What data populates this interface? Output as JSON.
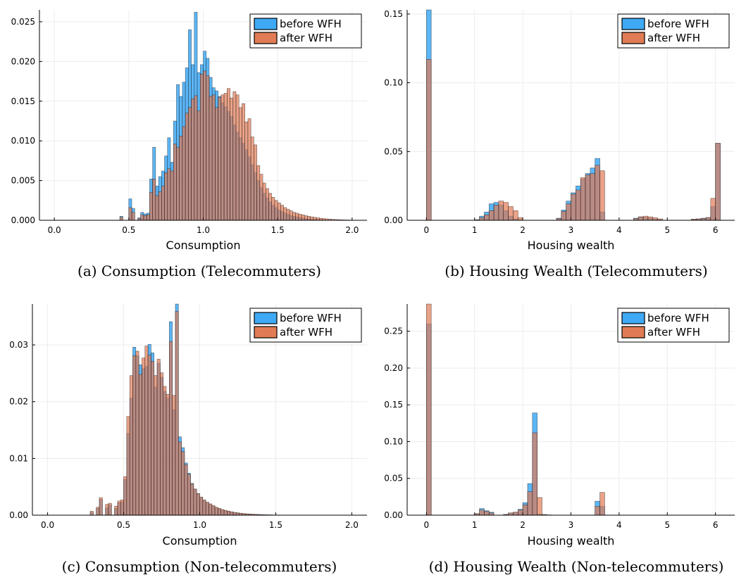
{
  "colors": {
    "before": "#3fa9f5",
    "after": "#e07b55",
    "grid": "#ececec",
    "axis": "#000000"
  },
  "chart_data": [
    {
      "id": "a",
      "type": "bar",
      "caption": "(a) Consumption (Telecommuters)",
      "xlabel": "Consumption",
      "ylabel": "",
      "xlim": [
        -0.1,
        2.1
      ],
      "ylim": [
        0,
        0.0265
      ],
      "xticks": [
        0,
        0.5,
        1,
        1.5,
        2
      ],
      "xtick_labels": [
        "0.0",
        "0.5",
        "1.0",
        "1.5",
        "2.0"
      ],
      "yticks": [
        0,
        0.005,
        0.01,
        0.015,
        0.02,
        0.025
      ],
      "ytick_labels": [
        "0.000",
        "0.005",
        "0.010",
        "0.015",
        "0.020",
        "0.025"
      ],
      "grid": true,
      "legend_position": "top-right",
      "bin_width": 0.02,
      "series": [
        {
          "name": "before WFH",
          "x": [
            0.44,
            0.5,
            0.52,
            0.56,
            0.58,
            0.6,
            0.62,
            0.64,
            0.66,
            0.68,
            0.7,
            0.72,
            0.74,
            0.76,
            0.78,
            0.8,
            0.82,
            0.84,
            0.86,
            0.88,
            0.9,
            0.92,
            0.94,
            0.96,
            0.98,
            1.0,
            1.02,
            1.04,
            1.06,
            1.08,
            1.1,
            1.12,
            1.14,
            1.16,
            1.18,
            1.2,
            1.22,
            1.24,
            1.26,
            1.28,
            1.3,
            1.32,
            1.34,
            1.36,
            1.38,
            1.4,
            1.42,
            1.44,
            1.46,
            1.48,
            1.5,
            1.52,
            1.54,
            1.56,
            1.58,
            1.6,
            1.62,
            1.64,
            1.66,
            1.68,
            1.7,
            1.72,
            1.74,
            1.76,
            1.78,
            1.8,
            1.82,
            1.84,
            1.86,
            1.88,
            1.9,
            1.92,
            1.94,
            1.96,
            1.98
          ],
          "values": [
            0.0005,
            0.0027,
            0.0015,
            0.0003,
            0.001,
            0.0008,
            0.0009,
            0.0052,
            0.0092,
            0.0043,
            0.0055,
            0.0062,
            0.0081,
            0.0104,
            0.0073,
            0.0125,
            0.0171,
            0.0156,
            0.0174,
            0.0192,
            0.024,
            0.0196,
            0.0262,
            0.0186,
            0.0196,
            0.0213,
            0.0204,
            0.018,
            0.0167,
            0.0163,
            0.0156,
            0.0148,
            0.0143,
            0.0137,
            0.0131,
            0.012,
            0.0111,
            0.0104,
            0.0097,
            0.0089,
            0.008,
            0.007,
            0.006,
            0.005,
            0.0041,
            0.0034,
            0.0028,
            0.0023,
            0.0019,
            0.0016,
            0.0013,
            0.0011,
            0.0009,
            0.00075,
            0.0006,
            0.0005,
            0.00042,
            0.00034,
            0.00028,
            0.00022,
            0.00018,
            0.00014,
            0.00011,
            9e-05,
            7e-05,
            5e-05,
            4e-05,
            3e-05,
            2e-05,
            2e-05,
            1e-05,
            1e-05,
            1e-05,
            1e-05,
            1e-05
          ]
        },
        {
          "name": "after WFH",
          "x": [
            0.44,
            0.5,
            0.52,
            0.56,
            0.58,
            0.6,
            0.62,
            0.64,
            0.66,
            0.68,
            0.7,
            0.72,
            0.74,
            0.76,
            0.78,
            0.8,
            0.82,
            0.84,
            0.86,
            0.88,
            0.9,
            0.92,
            0.94,
            0.96,
            0.98,
            1.0,
            1.02,
            1.04,
            1.06,
            1.08,
            1.1,
            1.12,
            1.14,
            1.16,
            1.18,
            1.2,
            1.22,
            1.24,
            1.26,
            1.28,
            1.3,
            1.32,
            1.34,
            1.36,
            1.38,
            1.4,
            1.42,
            1.44,
            1.46,
            1.48,
            1.5,
            1.52,
            1.54,
            1.56,
            1.58,
            1.6,
            1.62,
            1.64,
            1.66,
            1.68,
            1.7,
            1.72,
            1.74,
            1.76,
            1.78,
            1.8,
            1.82,
            1.84,
            1.86,
            1.88,
            1.9,
            1.92,
            1.94,
            1.96,
            1.98
          ],
          "values": [
            0.0004,
            0.0016,
            0.001,
            0.0002,
            0.0007,
            0.0006,
            0.0007,
            0.0035,
            0.0052,
            0.0031,
            0.0036,
            0.0043,
            0.006,
            0.0065,
            0.0062,
            0.0096,
            0.0092,
            0.0106,
            0.0118,
            0.0135,
            0.0142,
            0.0153,
            0.0157,
            0.0138,
            0.0184,
            0.0188,
            0.0182,
            0.0156,
            0.0158,
            0.0142,
            0.0155,
            0.0158,
            0.016,
            0.0166,
            0.0154,
            0.0162,
            0.0158,
            0.0142,
            0.0147,
            0.0124,
            0.0128,
            0.0105,
            0.0095,
            0.0069,
            0.0058,
            0.0047,
            0.004,
            0.0034,
            0.0029,
            0.0025,
            0.0022,
            0.0019,
            0.0016,
            0.0014,
            0.0012,
            0.001,
            0.0009,
            0.00078,
            0.00068,
            0.00058,
            0.0005,
            0.00043,
            0.00037,
            0.00031,
            0.00026,
            0.00022,
            0.00018,
            0.00015,
            0.00012,
            0.0001,
            8e-05,
            6e-05,
            5e-05,
            4e-05,
            3e-05
          ]
        }
      ]
    },
    {
      "id": "b",
      "type": "bar",
      "caption": "(b) Housing Wealth (Telecommuters)",
      "xlabel": "Housing wealth",
      "ylabel": "",
      "xlim": [
        -0.4,
        6.4
      ],
      "ylim": [
        0,
        0.153
      ],
      "xticks": [
        0,
        1,
        2,
        3,
        4,
        5,
        6
      ],
      "xtick_labels": [
        "0",
        "1",
        "2",
        "3",
        "4",
        "5",
        "6"
      ],
      "yticks": [
        0,
        0.05,
        0.1,
        0.15
      ],
      "ytick_labels": [
        "0.00",
        "0.05",
        "0.10",
        "0.15"
      ],
      "grid": true,
      "legend_position": "top-right",
      "bin_width": 0.1,
      "series": [
        {
          "name": "before WFH",
          "x": [
            0.0,
            1.0,
            1.1,
            1.2,
            1.3,
            1.4,
            1.5,
            1.6,
            1.7,
            1.8,
            1.9,
            2.7,
            2.8,
            2.9,
            3.0,
            3.1,
            3.2,
            3.3,
            3.4,
            3.5,
            3.6,
            4.3,
            4.4,
            4.5,
            4.6,
            4.7,
            4.8,
            5.5,
            5.6,
            5.7,
            5.8,
            5.9,
            6.0
          ],
          "values": [
            0.153,
            0.0004,
            0.003,
            0.006,
            0.012,
            0.013,
            0.011,
            0.007,
            0.003,
            0.001,
            0.0003,
            0.0015,
            0.0075,
            0.014,
            0.02,
            0.025,
            0.03,
            0.034,
            0.038,
            0.045,
            0.006,
            0.0015,
            0.0025,
            0.002,
            0.0015,
            0.001,
            0.0005,
            0.0008,
            0.001,
            0.0015,
            0.002,
            0.01,
            0.056
          ]
        },
        {
          "name": "after WFH",
          "x": [
            0.0,
            1.0,
            1.1,
            1.2,
            1.3,
            1.4,
            1.5,
            1.6,
            1.7,
            1.8,
            1.9,
            2.7,
            2.8,
            2.9,
            3.0,
            3.1,
            3.2,
            3.3,
            3.4,
            3.5,
            3.6,
            4.3,
            4.4,
            4.5,
            4.6,
            4.7,
            4.8,
            5.5,
            5.6,
            5.7,
            5.8,
            5.9,
            6.0
          ],
          "values": [
            0.117,
            0.0003,
            0.002,
            0.004,
            0.007,
            0.011,
            0.014,
            0.013,
            0.01,
            0.007,
            0.002,
            0.0012,
            0.0065,
            0.012,
            0.019,
            0.022,
            0.031,
            0.033,
            0.034,
            0.04,
            0.036,
            0.0012,
            0.0025,
            0.003,
            0.0025,
            0.0018,
            0.001,
            0.0008,
            0.001,
            0.0012,
            0.002,
            0.016,
            0.056
          ]
        }
      ]
    },
    {
      "id": "c",
      "type": "bar",
      "caption": "(c) Consumption (Non-telecommuters)",
      "xlabel": "Consumption",
      "ylabel": "",
      "xlim": [
        -0.1,
        2.1
      ],
      "ylim": [
        0,
        0.0372
      ],
      "xticks": [
        0,
        0.5,
        1,
        1.5,
        2
      ],
      "xtick_labels": [
        "0.0",
        "0.5",
        "1.0",
        "1.5",
        "2.0"
      ],
      "yticks": [
        0,
        0.01,
        0.02,
        0.03
      ],
      "ytick_labels": [
        "0.00",
        "0.01",
        "0.02",
        "0.03"
      ],
      "grid": true,
      "legend_position": "top-right",
      "bin_width": 0.02,
      "series": [
        {
          "name": "before WFH",
          "x": [
            0.28,
            0.32,
            0.34,
            0.38,
            0.4,
            0.44,
            0.46,
            0.48,
            0.5,
            0.52,
            0.54,
            0.56,
            0.58,
            0.6,
            0.62,
            0.64,
            0.66,
            0.68,
            0.7,
            0.72,
            0.74,
            0.76,
            0.78,
            0.8,
            0.82,
            0.84,
            0.86,
            0.88,
            0.9,
            0.92,
            0.94,
            0.96,
            0.98,
            1.0,
            1.02,
            1.04,
            1.06,
            1.08,
            1.1,
            1.12,
            1.14,
            1.16,
            1.18,
            1.2,
            1.22,
            1.24,
            1.26,
            1.28,
            1.3,
            1.32,
            1.34,
            1.36,
            1.38,
            1.4,
            1.42,
            1.44,
            1.46,
            1.48,
            1.5,
            1.52,
            1.54,
            1.56,
            1.58,
            1.6
          ],
          "values": [
            0.0005,
            0.0012,
            0.0028,
            0.0013,
            0.0018,
            0.0012,
            0.0022,
            0.0023,
            0.0063,
            0.0144,
            0.0206,
            0.0296,
            0.0281,
            0.0265,
            0.0258,
            0.0262,
            0.0301,
            0.0286,
            0.0226,
            0.0268,
            0.0243,
            0.0218,
            0.0206,
            0.0341,
            0.0186,
            0.0372,
            0.0138,
            0.0119,
            0.0092,
            0.0074,
            0.0056,
            0.0046,
            0.0038,
            0.0031,
            0.0026,
            0.0022,
            0.0019,
            0.0016,
            0.0013,
            0.0011,
            0.0009,
            0.00078,
            0.00066,
            0.00055,
            0.00046,
            0.00038,
            0.00031,
            0.00026,
            0.00021,
            0.00018,
            0.00015,
            0.00012,
            0.0001,
            8e-05,
            6e-05,
            5e-05,
            4e-05,
            3e-05,
            3e-05,
            2e-05,
            2e-05,
            1e-05,
            1e-05,
            1e-05
          ]
        },
        {
          "name": "after WFH",
          "x": [
            0.28,
            0.32,
            0.34,
            0.38,
            0.4,
            0.44,
            0.46,
            0.48,
            0.5,
            0.52,
            0.54,
            0.56,
            0.58,
            0.6,
            0.62,
            0.64,
            0.66,
            0.68,
            0.7,
            0.72,
            0.74,
            0.76,
            0.78,
            0.8,
            0.82,
            0.84,
            0.86,
            0.88,
            0.9,
            0.92,
            0.94,
            0.96,
            0.98,
            1.0,
            1.02,
            1.04,
            1.06,
            1.08,
            1.1,
            1.12,
            1.14,
            1.16,
            1.18,
            1.2,
            1.22,
            1.24,
            1.26,
            1.28,
            1.3,
            1.32,
            1.34,
            1.36,
            1.38,
            1.4,
            1.42,
            1.44,
            1.46,
            1.48,
            1.5,
            1.52,
            1.54,
            1.56,
            1.58,
            1.6
          ],
          "values": [
            0.0007,
            0.0014,
            0.0031,
            0.0019,
            0.0021,
            0.0016,
            0.0025,
            0.0027,
            0.0068,
            0.0174,
            0.0246,
            0.0281,
            0.0289,
            0.0248,
            0.0277,
            0.0298,
            0.0282,
            0.0271,
            0.0246,
            0.0275,
            0.0251,
            0.0227,
            0.0213,
            0.0306,
            0.0211,
            0.0359,
            0.0129,
            0.0112,
            0.0089,
            0.0072,
            0.0055,
            0.0046,
            0.0038,
            0.0032,
            0.0027,
            0.0023,
            0.002,
            0.0017,
            0.0014,
            0.0012,
            0.001,
            0.00085,
            0.00072,
            0.0006,
            0.0005,
            0.00042,
            0.00035,
            0.00029,
            0.00024,
            0.0002,
            0.00017,
            0.00014,
            0.00011,
            9e-05,
            7e-05,
            6e-05,
            5e-05,
            4e-05,
            3e-05,
            2e-05,
            2e-05,
            1e-05,
            1e-05,
            1e-05
          ]
        }
      ]
    },
    {
      "id": "d",
      "type": "bar",
      "caption": "(d) Housing Wealth (Non-telecommuters)",
      "xlabel": "Housing wealth",
      "ylabel": "",
      "xlim": [
        -0.4,
        6.4
      ],
      "ylim": [
        0,
        0.287
      ],
      "xticks": [
        0,
        1,
        2,
        3,
        4,
        5,
        6
      ],
      "xtick_labels": [
        "0",
        "1",
        "2",
        "3",
        "4",
        "5",
        "6"
      ],
      "yticks": [
        0,
        0.05,
        0.1,
        0.15,
        0.2,
        0.25
      ],
      "ytick_labels": [
        "0.00",
        "0.05",
        "0.10",
        "0.15",
        "0.20",
        "0.25"
      ],
      "grid": true,
      "legend_position": "top-right",
      "bin_width": 0.1,
      "series": [
        {
          "name": "before WFH",
          "x": [
            0.0,
            1.0,
            1.1,
            1.2,
            1.3,
            1.6,
            1.7,
            1.8,
            1.9,
            2.0,
            2.1,
            2.2,
            2.3,
            2.4,
            2.5,
            3.5,
            3.6
          ],
          "values": [
            0.26,
            0.002,
            0.009,
            0.006,
            0.004,
            0.001,
            0.003,
            0.004,
            0.008,
            0.017,
            0.043,
            0.139,
            0.0015,
            0.0005,
            0.0003,
            0.019,
            0.012
          ]
        },
        {
          "name": "after WFH",
          "x": [
            0.0,
            1.0,
            1.1,
            1.2,
            1.3,
            1.6,
            1.7,
            1.8,
            1.9,
            2.0,
            2.1,
            2.2,
            2.3,
            2.4,
            2.5,
            3.5,
            3.6
          ],
          "values": [
            0.287,
            0.002,
            0.007,
            0.005,
            0.003,
            0.001,
            0.003,
            0.004,
            0.007,
            0.014,
            0.032,
            0.112,
            0.024,
            0.001,
            0.0003,
            0.012,
            0.031
          ]
        }
      ]
    }
  ]
}
